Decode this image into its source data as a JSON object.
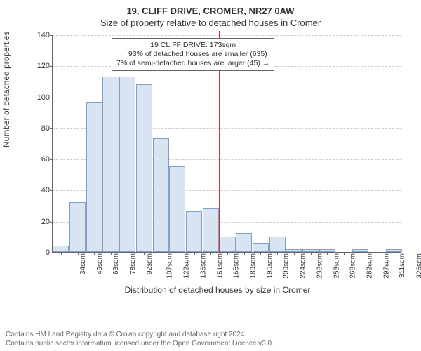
{
  "title_main": "19, CLIFF DRIVE, CROMER, NR27 0AW",
  "title_sub": "Size of property relative to detached houses in Cromer",
  "ylabel": "Number of detached properties",
  "xlabel": "Distribution of detached houses by size in Cromer",
  "chart": {
    "type": "histogram",
    "background_color": "#ffffff",
    "bar_fill": "#d8e4f2",
    "bar_stroke": "#7f9fc9",
    "grid_color": "#cccccc",
    "axis_color": "#666666",
    "marker_color": "#cc3333",
    "ylim": [
      0,
      140
    ],
    "ytick_step": 20,
    "x_categories": [
      "34sqm",
      "49sqm",
      "63sqm",
      "78sqm",
      "92sqm",
      "107sqm",
      "122sqm",
      "136sqm",
      "151sqm",
      "165sqm",
      "180sqm",
      "195sqm",
      "209sqm",
      "224sqm",
      "238sqm",
      "253sqm",
      "268sqm",
      "282sqm",
      "297sqm",
      "311sqm",
      "326sqm"
    ],
    "values": [
      4,
      32,
      96,
      113,
      113,
      108,
      73,
      55,
      26,
      28,
      10,
      12,
      6,
      10,
      2,
      2,
      2,
      0,
      2,
      0,
      2
    ],
    "marker_after_index": 9,
    "label_fontsize": 12,
    "tick_fontsize": 11
  },
  "callout": {
    "line1": "19 CLIFF DRIVE: 173sqm",
    "line2": "← 93% of detached houses are smaller (635)",
    "line3": "7% of semi-detached houses are larger (45) →"
  },
  "footer": {
    "line1": "Contains HM Land Registry data © Crown copyright and database right 2024.",
    "line2": "Contains public sector information licensed under the Open Government Licence v3.0."
  }
}
